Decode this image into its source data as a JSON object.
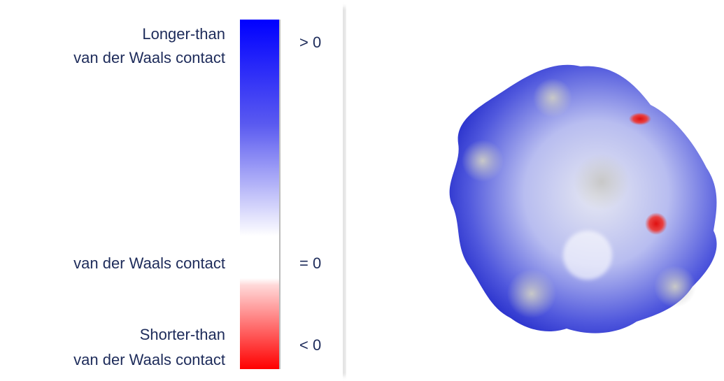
{
  "legend": {
    "items": [
      {
        "lines": [
          "Longer-than",
          "van der Waals contact"
        ],
        "symbol": "> 0"
      },
      {
        "lines": [
          "van der Waals contact"
        ],
        "symbol": "= 0"
      },
      {
        "lines": [
          "Shorter-than",
          "van der Waals contact"
        ],
        "symbol": "< 0"
      }
    ]
  }
}
